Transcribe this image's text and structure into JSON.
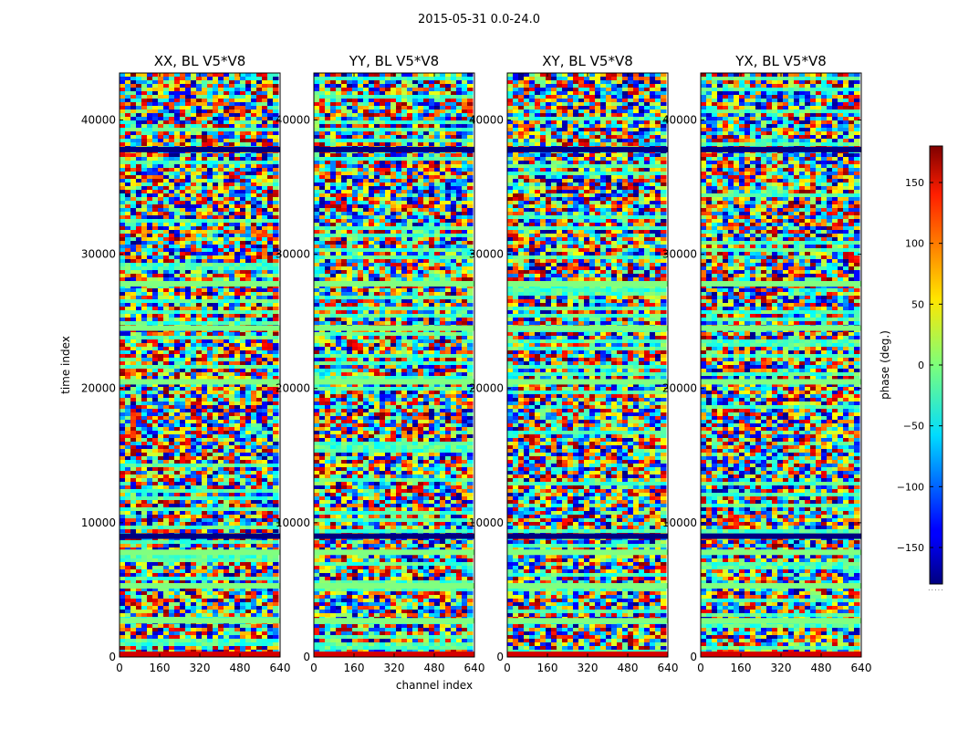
{
  "figure": {
    "suptitle": "2015-05-31 0.0-24.0",
    "ylabel": "time index",
    "xlabel": "channel index",
    "colorbar_label": "phase (deg.)",
    "colorbar_note": "....."
  },
  "chart_data": {
    "type": "heatmap",
    "colormap": "jet",
    "clim": [
      -180,
      180
    ],
    "xlim": [
      0,
      640
    ],
    "ylim": [
      0,
      43500
    ],
    "x_ticks": [
      0,
      160,
      320,
      480,
      640
    ],
    "y_ticks": [
      0,
      10000,
      20000,
      30000,
      40000
    ],
    "colorbar_ticks": [
      150,
      100,
      50,
      0,
      -50,
      -100,
      -150
    ],
    "panels": [
      {
        "title": "XX, BL V5*V8"
      },
      {
        "title": "YY, BL V5*V8"
      },
      {
        "title": "XY, BL V5*V8"
      },
      {
        "title": "YX, BL V5*V8"
      }
    ],
    "dominant_phase_bands": [
      {
        "time": 37800,
        "phase": -180
      },
      {
        "time": 27800,
        "phase": 0
      },
      {
        "time": 24500,
        "phase": 0
      },
      {
        "time": 20500,
        "phase": 0
      },
      {
        "time": 9000,
        "phase": -180
      },
      {
        "time": 7800,
        "phase": 0
      },
      {
        "time": 5300,
        "phase": 0
      },
      {
        "time": 2700,
        "phase": 0
      },
      {
        "time": 200,
        "phase": 150
      }
    ]
  }
}
